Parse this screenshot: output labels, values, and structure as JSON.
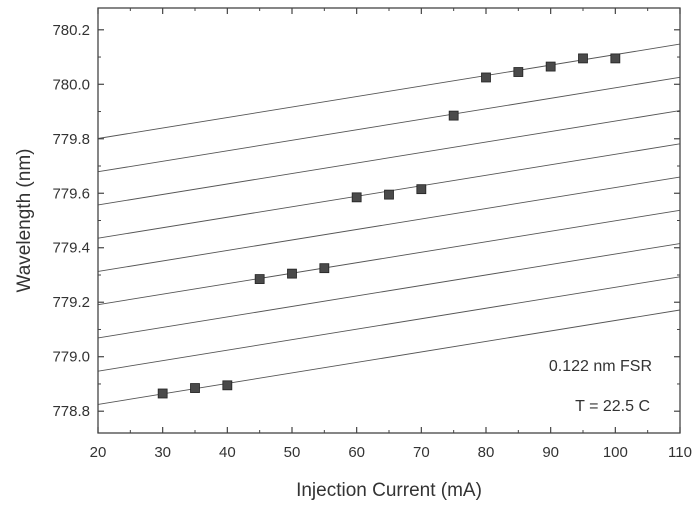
{
  "chart_data": {
    "type": "scatter",
    "title": "",
    "xlabel": "Injection Current (mA)",
    "ylabel": "Wavelength (nm)",
    "xlim": [
      20,
      110
    ],
    "ylim": [
      778.72,
      780.28
    ],
    "xticks": [
      20,
      30,
      40,
      50,
      60,
      70,
      80,
      90,
      100,
      110
    ],
    "yticks": [
      778.8,
      779.0,
      779.2,
      779.4,
      779.6,
      779.8,
      780.0,
      780.2
    ],
    "ytick_labels": [
      "778.8",
      "779.0",
      "779.2",
      "779.4",
      "779.6",
      "779.8",
      "780.0",
      "780.2"
    ],
    "grid": false,
    "series": [
      {
        "marker": "square",
        "color": "#4a4a4a",
        "x": [
          30,
          35,
          40,
          45,
          50,
          55,
          60,
          65,
          70,
          75,
          80,
          85,
          90,
          95,
          100
        ],
        "y": [
          778.865,
          778.885,
          778.895,
          779.285,
          779.305,
          779.325,
          779.585,
          779.595,
          779.615,
          779.885,
          780.025,
          780.045,
          780.065,
          780.095,
          780.095
        ]
      }
    ],
    "mode_lines": {
      "color": "#555555",
      "slope_nm_per_mA": 0.00385,
      "spacing_nm": 0.122,
      "count": 9,
      "lowest_intercept_at_20mA": 778.825
    },
    "annotations": [
      "0.122 nm FSR",
      "T = 22.5 C"
    ]
  }
}
